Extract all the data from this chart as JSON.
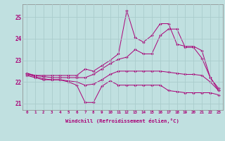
{
  "xlabel": "Windchill (Refroidissement éolien,°C)",
  "xlim": [
    -0.5,
    23.5
  ],
  "ylim": [
    20.7,
    25.6
  ],
  "yticks": [
    21,
    22,
    23,
    24,
    25
  ],
  "xticks": [
    0,
    1,
    2,
    3,
    4,
    5,
    6,
    7,
    8,
    9,
    10,
    11,
    12,
    13,
    14,
    15,
    16,
    17,
    18,
    19,
    20,
    21,
    22,
    23
  ],
  "bg_color": "#c0e0e0",
  "grid_color": "#aacccc",
  "line_color": "#aa0077",
  "line_min": [
    22.3,
    22.2,
    22.1,
    22.1,
    22.1,
    22.0,
    21.85,
    21.05,
    21.05,
    21.8,
    22.05,
    21.85,
    21.85,
    21.85,
    21.85,
    21.85,
    21.85,
    21.6,
    21.55,
    21.5,
    21.5,
    21.5,
    21.5,
    21.4
  ],
  "line_low": [
    22.35,
    22.25,
    22.15,
    22.1,
    22.1,
    22.05,
    22.0,
    21.85,
    21.9,
    22.1,
    22.35,
    22.5,
    22.5,
    22.5,
    22.5,
    22.5,
    22.5,
    22.45,
    22.4,
    22.35,
    22.35,
    22.3,
    22.0,
    21.6
  ],
  "line_high": [
    22.4,
    22.3,
    22.25,
    22.2,
    22.2,
    22.2,
    22.2,
    22.2,
    22.35,
    22.6,
    22.85,
    23.05,
    23.15,
    23.5,
    23.3,
    23.3,
    24.15,
    24.45,
    24.45,
    23.6,
    23.6,
    23.1,
    22.2,
    21.7
  ],
  "line_max": [
    22.4,
    22.3,
    22.3,
    22.3,
    22.3,
    22.3,
    22.3,
    22.6,
    22.5,
    22.75,
    23.0,
    23.3,
    25.3,
    24.05,
    23.85,
    24.15,
    24.7,
    24.7,
    23.75,
    23.65,
    23.65,
    23.45,
    22.2,
    21.6
  ]
}
